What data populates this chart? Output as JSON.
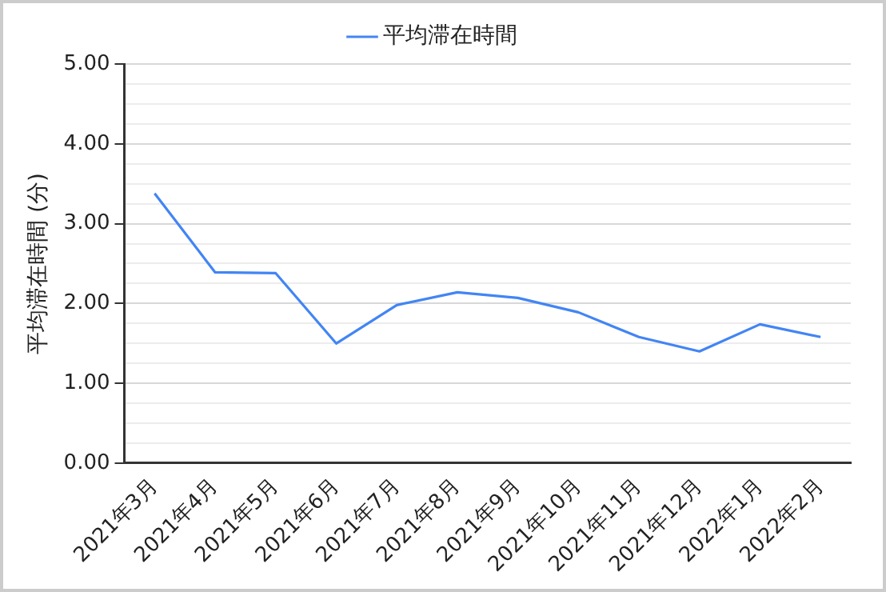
{
  "chart_data": {
    "type": "line",
    "ylabel": "平均滞在時間 (分)",
    "categories": [
      "2021年3月",
      "2021年4月",
      "2021年5月",
      "2021年6月",
      "2021年7月",
      "2021年8月",
      "2021年9月",
      "2021年10月",
      "2021年11月",
      "2021年12月",
      "2022年1月",
      "2022年2月"
    ],
    "series": [
      {
        "name": "平均滞在時間",
        "color": "#4285f4",
        "values": [
          3.38,
          2.39,
          2.38,
          1.5,
          1.98,
          2.14,
          2.07,
          1.89,
          1.58,
          1.4,
          1.74,
          1.58
        ]
      }
    ],
    "ylim": [
      0,
      5
    ],
    "yticks": [
      {
        "value": 0,
        "label": "0.00"
      },
      {
        "value": 0.25,
        "label": null
      },
      {
        "value": 0.5,
        "label": null
      },
      {
        "value": 0.75,
        "label": null
      },
      {
        "value": 1,
        "label": "1.00"
      },
      {
        "value": 1.25,
        "label": null
      },
      {
        "value": 1.5,
        "label": null
      },
      {
        "value": 1.75,
        "label": null
      },
      {
        "value": 2,
        "label": "2.00"
      },
      {
        "value": 2.25,
        "label": null
      },
      {
        "value": 2.5,
        "label": null
      },
      {
        "value": 2.75,
        "label": null
      },
      {
        "value": 3,
        "label": "3.00"
      },
      {
        "value": 3.25,
        "label": null
      },
      {
        "value": 3.5,
        "label": null
      },
      {
        "value": 3.75,
        "label": null
      },
      {
        "value": 4,
        "label": "4.00"
      },
      {
        "value": 4.25,
        "label": null
      },
      {
        "value": 4.5,
        "label": null
      },
      {
        "value": 4.75,
        "label": null
      },
      {
        "value": 5,
        "label": "5.00"
      }
    ],
    "grid": "y",
    "legend": "top",
    "marker": "none",
    "line_style": "solid"
  }
}
